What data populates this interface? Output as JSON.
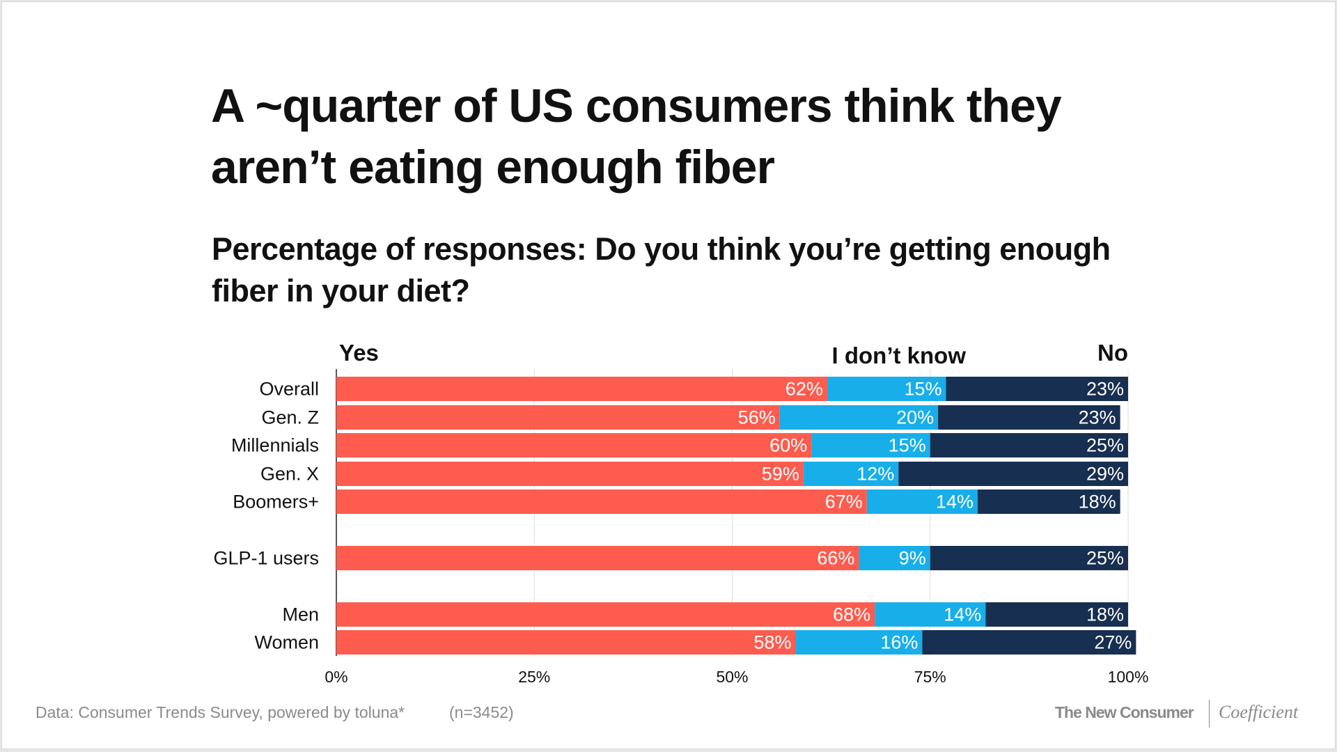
{
  "title": "A ~quarter of US consumers think they aren’t eating enough fiber",
  "subtitle": "Percentage of responses: Do you think you’re getting enough fiber in your diet?",
  "footer": {
    "source": "Data: Consumer Trends Survey, powered by toluna*",
    "sample": "(n=3452)",
    "logo_left": "The New Consumer",
    "logo_right": "Coefficient"
  },
  "chart_data": {
    "type": "bar",
    "orientation": "horizontal",
    "stacked": true,
    "categories": [
      "Overall",
      "Gen. Z",
      "Millennials",
      "Gen. X",
      "Boomers+",
      "GLP-1 users",
      "Men",
      "Women"
    ],
    "series": [
      {
        "name": "Yes",
        "color": "#fd5c4f",
        "values": [
          62,
          56,
          60,
          59,
          67,
          66,
          68,
          58
        ]
      },
      {
        "name": "I don’t know",
        "color": "#17aeea",
        "values": [
          15,
          20,
          15,
          12,
          14,
          9,
          14,
          16
        ]
      },
      {
        "name": "No",
        "color": "#172f50",
        "values": [
          23,
          23,
          25,
          29,
          18,
          25,
          18,
          27
        ]
      }
    ],
    "xlim": [
      0,
      100
    ],
    "xticks": [
      "0%",
      "25%",
      "50%",
      "75%",
      "100%"
    ],
    "grid": true,
    "legend_placement": "top"
  }
}
